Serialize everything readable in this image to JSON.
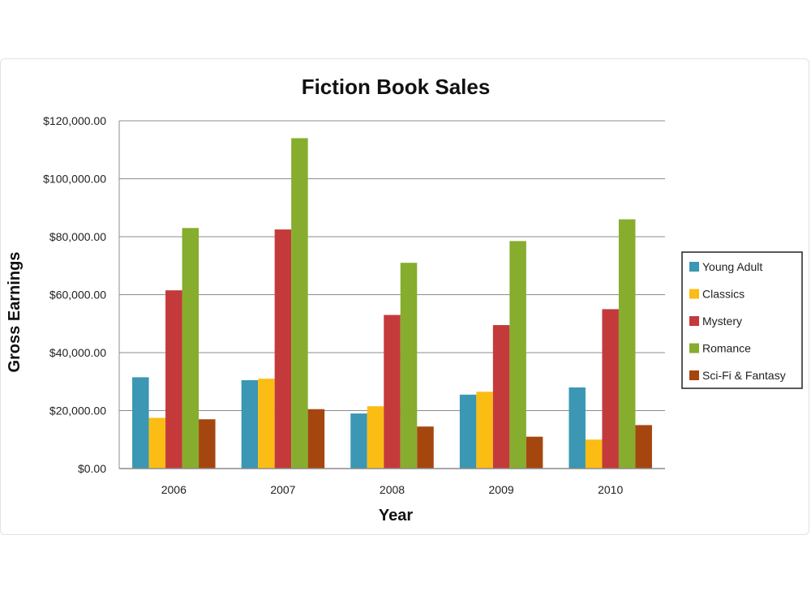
{
  "chart_data": {
    "type": "bar",
    "title": "Fiction Book Sales",
    "xlabel": "Year",
    "ylabel": "Gross Earnings",
    "categories": [
      "2006",
      "2007",
      "2008",
      "2009",
      "2010"
    ],
    "ylim": [
      0,
      120000
    ],
    "yticks": [
      0,
      20000,
      40000,
      60000,
      80000,
      100000,
      120000
    ],
    "ytick_labels": [
      "$0.00",
      "$20,000.00",
      "$40,000.00",
      "$60,000.00",
      "$80,000.00",
      "$100,000.00",
      "$120,000.00"
    ],
    "grid": true,
    "legend_position": "right",
    "series": [
      {
        "name": "Young Adult",
        "color": "#3b97b3",
        "values": [
          31500,
          30500,
          19000,
          25500,
          28000
        ]
      },
      {
        "name": "Classics",
        "color": "#fbbd14",
        "values": [
          17500,
          31000,
          21500,
          26500,
          10000
        ]
      },
      {
        "name": "Mystery",
        "color": "#c43a3b",
        "values": [
          61500,
          82500,
          53000,
          49500,
          55000
        ]
      },
      {
        "name": "Romance",
        "color": "#86ad2e",
        "values": [
          83000,
          114000,
          71000,
          78500,
          86000
        ]
      },
      {
        "name": "Sci-Fi & Fantasy",
        "color": "#a6460f",
        "values": [
          17000,
          20500,
          14500,
          11000,
          15000
        ]
      }
    ]
  }
}
